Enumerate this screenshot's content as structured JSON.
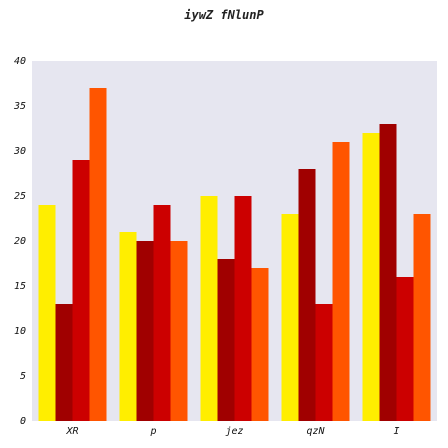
{
  "chart_data": {
    "type": "bar",
    "title": "iywZ fNlunP",
    "xlabel": "",
    "ylabel": "",
    "categories": [
      "XR",
      "p",
      "jez",
      "qzN",
      "I"
    ],
    "ylim": [
      0,
      40
    ],
    "yticks": [
      0,
      5,
      10,
      15,
      20,
      25,
      30,
      35,
      40
    ],
    "grid": false,
    "legend": "none",
    "plot_background": "#e6e6f0",
    "series": [
      {
        "color": "#ffee00",
        "values": [
          24,
          21,
          25,
          23,
          32
        ]
      },
      {
        "color": "#a00000",
        "values": [
          13,
          20,
          18,
          28,
          33
        ]
      },
      {
        "color": "#cc0000",
        "values": [
          29,
          24,
          25,
          13,
          16
        ]
      },
      {
        "color": "#ff5500",
        "values": [
          37,
          20,
          17,
          31,
          23
        ]
      }
    ]
  }
}
